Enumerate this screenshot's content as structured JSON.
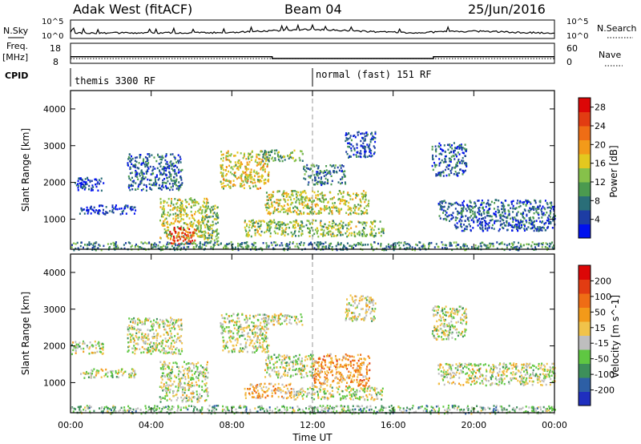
{
  "header": {
    "station": "Adak West (fitACF)",
    "beam": "Beam 04",
    "date": "25/Jun/2016"
  },
  "noise_panel": {
    "left_label": "N.Sky",
    "right_label": "N.Search",
    "left_ticks": [
      "10^5",
      "10^0"
    ],
    "right_ticks": [
      "10^5",
      "10^0"
    ]
  },
  "freq_panel": {
    "left_label_top": "Freq.",
    "left_label_unit": "[MHz]",
    "right_label": "Nave",
    "left_ticks": [
      "18",
      "8"
    ],
    "right_ticks": [
      "60",
      "0"
    ],
    "freq_values": [
      {
        "from": 0.0,
        "to": 10.0,
        "value": 11.3
      },
      {
        "from": 10.0,
        "to": 18.0,
        "value": 10.4
      },
      {
        "from": 18.0,
        "to": 24.0,
        "value": 11.3
      }
    ],
    "nave_level": 14
  },
  "cpid_panel": {
    "label": "CPID",
    "modes": [
      {
        "label": "themis 3300 RF",
        "start_ut": 0
      },
      {
        "label": "normal (fast) 151 RF",
        "start_ut": 12
      }
    ]
  },
  "chart_data": [
    {
      "type": "heatmap",
      "ylabel": "Slant Range [km]",
      "y_ticks": [
        "1000",
        "2000",
        "3000",
        "4000"
      ],
      "ylim": [
        180,
        4500
      ],
      "colorbar_label": "Power [dB]",
      "colorbar_ticks": [
        "4",
        "8",
        "12",
        "16",
        "20",
        "24",
        "28"
      ],
      "colorbar_range": [
        0,
        30
      ],
      "colors": [
        "#0011ee",
        "#1d3da4",
        "#2a6e78",
        "#4b9a4f",
        "#86c14a",
        "#e3c81f",
        "#f39a19",
        "#ef6d15",
        "#e23c12",
        "#dc0707"
      ],
      "patches": [
        {
          "t0": 0.4,
          "t1": 3.2,
          "r0": 1150,
          "r1": 1400,
          "level": 0.12
        },
        {
          "t0": 0.0,
          "t1": 1.6,
          "r0": 1800,
          "r1": 2150,
          "level": 0.12
        },
        {
          "t0": 2.8,
          "t1": 5.5,
          "r0": 1800,
          "r1": 2800,
          "level": 0.2
        },
        {
          "t0": 4.4,
          "t1": 6.8,
          "r0": 500,
          "r1": 1600,
          "level": 0.5
        },
        {
          "t0": 4.9,
          "t1": 6.2,
          "r0": 350,
          "r1": 800,
          "level": 0.85
        },
        {
          "t0": 6.6,
          "t1": 7.3,
          "r0": 300,
          "r1": 1400,
          "level": 0.4
        },
        {
          "t0": 7.4,
          "t1": 9.8,
          "r0": 1850,
          "r1": 2900,
          "level": 0.55
        },
        {
          "t0": 9.6,
          "t1": 14.8,
          "r0": 1150,
          "r1": 1800,
          "level": 0.5
        },
        {
          "t0": 9.5,
          "t1": 11.5,
          "r0": 2600,
          "r1": 2900,
          "level": 0.35
        },
        {
          "t0": 11.5,
          "t1": 13.6,
          "r0": 1950,
          "r1": 2500,
          "level": 0.25
        },
        {
          "t0": 8.6,
          "t1": 15.5,
          "r0": 550,
          "r1": 1000,
          "level": 0.45
        },
        {
          "t0": 13.6,
          "t1": 15.1,
          "r0": 2700,
          "r1": 3400,
          "level": 0.15
        },
        {
          "t0": 17.9,
          "t1": 19.6,
          "r0": 2200,
          "r1": 3100,
          "level": 0.2
        },
        {
          "t0": 18.2,
          "t1": 24.0,
          "r0": 950,
          "r1": 1550,
          "level": 0.22
        },
        {
          "t0": 19.0,
          "t1": 24.0,
          "r0": 700,
          "r1": 1000,
          "level": 0.15
        },
        {
          "t0": 0.0,
          "t1": 24.0,
          "r0": 180,
          "r1": 400,
          "level": 0.3
        }
      ]
    },
    {
      "type": "heatmap",
      "ylabel": "Slant Range [km]",
      "y_ticks": [
        "1000",
        "2000",
        "3000",
        "4000"
      ],
      "ylim": [
        180,
        4500
      ],
      "colorbar_label": "Velocity [m s^-1]",
      "colorbar_ticks": [
        "200",
        "100",
        "50",
        "15",
        "-15",
        "-50",
        "-100",
        "-200"
      ],
      "colorbar_range": [
        250,
        -250
      ],
      "colors": [
        "#1f2fbf",
        "#2d5fa5",
        "#3d8f5a",
        "#5fc742",
        "#bebebe",
        "#f1c34a",
        "#f39a19",
        "#ef6d15",
        "#e23c12",
        "#dc0707"
      ],
      "patches": [
        {
          "t0": 0.4,
          "t1": 3.2,
          "r0": 1150,
          "r1": 1400,
          "level": 0.45
        },
        {
          "t0": 0.0,
          "t1": 1.6,
          "r0": 1800,
          "r1": 2150,
          "level": 0.45
        },
        {
          "t0": 2.8,
          "t1": 5.5,
          "r0": 1800,
          "r1": 2800,
          "level": 0.45
        },
        {
          "t0": 4.4,
          "t1": 6.8,
          "r0": 500,
          "r1": 1600,
          "level": 0.45
        },
        {
          "t0": 7.4,
          "t1": 9.8,
          "r0": 1850,
          "r1": 2900,
          "level": 0.45
        },
        {
          "t0": 9.6,
          "t1": 12.0,
          "r0": 1150,
          "r1": 1800,
          "level": 0.45
        },
        {
          "t0": 12.0,
          "t1": 14.8,
          "r0": 900,
          "r1": 1800,
          "level": 0.65
        },
        {
          "t0": 8.6,
          "t1": 11.0,
          "r0": 600,
          "r1": 1000,
          "level": 0.6
        },
        {
          "t0": 11.0,
          "t1": 15.5,
          "r0": 550,
          "r1": 900,
          "level": 0.45
        },
        {
          "t0": 9.5,
          "t1": 11.5,
          "r0": 2600,
          "r1": 2900,
          "level": 0.45
        },
        {
          "t0": 13.6,
          "t1": 15.1,
          "r0": 2700,
          "r1": 3400,
          "level": 0.45
        },
        {
          "t0": 17.9,
          "t1": 19.6,
          "r0": 2200,
          "r1": 3100,
          "level": 0.45
        },
        {
          "t0": 18.2,
          "t1": 24.0,
          "r0": 950,
          "r1": 1550,
          "level": 0.45
        },
        {
          "t0": 0.0,
          "t1": 24.0,
          "r0": 180,
          "r1": 400,
          "level": 0.35
        }
      ]
    }
  ],
  "x_axis": {
    "label": "Time UT",
    "ticks": [
      "00:00",
      "04:00",
      "08:00",
      "12:00",
      "16:00",
      "20:00",
      "00:00"
    ],
    "range_hours": [
      0,
      24
    ]
  }
}
